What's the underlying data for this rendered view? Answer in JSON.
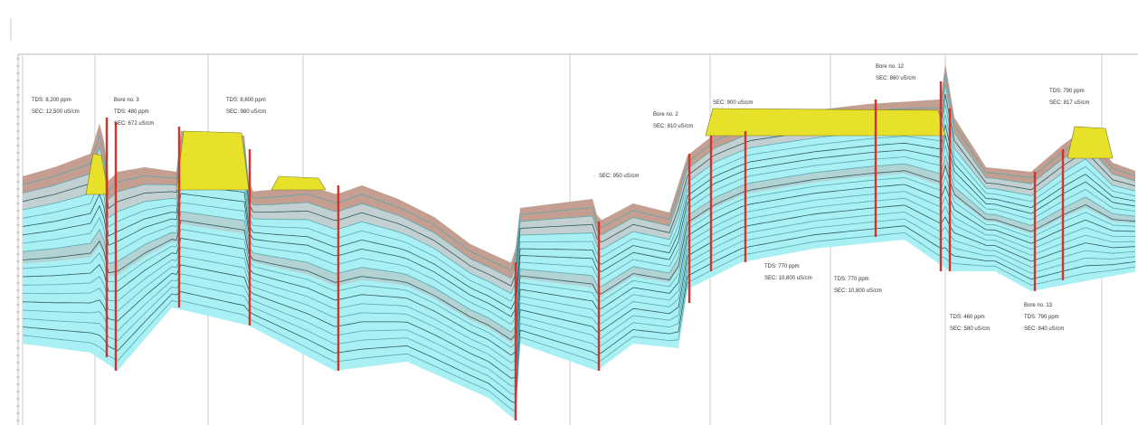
{
  "labels": [
    [
      "TDS: 8,200 ppm",
      "SEC: 12,500 uS/cm"
    ],
    [
      "Bore no. 3",
      "TDS: 480 ppm",
      "SEC: 672 uS/cm"
    ],
    [
      "TDS: 8,600 ppm",
      "SEC: 980 uS/cm"
    ],
    [
      "Bore no. 2",
      "SEC: 810 uS/cm"
    ],
    [
      "SEC: 900 uS/cm"
    ],
    [
      "SEC: 950 uS/cm"
    ],
    [
      "Bore no. 12",
      "SEC: 860 uS/cm"
    ],
    [
      "TDS: 770 ppm",
      "SEC: 10,800 uS/cm"
    ],
    [
      "TDS: 770 ppm",
      "SEC: 10,800 uS/cm"
    ],
    [
      "TDS: 460 ppm",
      "SEC: 580 uS/cm"
    ],
    [
      "Bore no. 13",
      "TDS: 790 ppm",
      "SEC: 840 uS/cm"
    ],
    [
      "TDS: 790 ppm",
      "SEC: 817 uS/cm"
    ]
  ]
}
